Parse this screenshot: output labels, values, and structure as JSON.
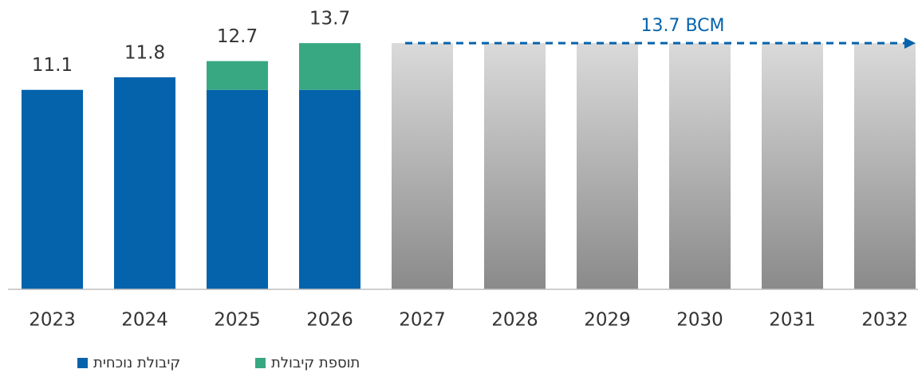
{
  "chart_data": {
    "type": "bar",
    "stacked": true,
    "categories": [
      "2023",
      "2024",
      "2025",
      "2026",
      "2027",
      "2028",
      "2029",
      "2030",
      "2031",
      "2032"
    ],
    "series": [
      {
        "name": "קיבולת נוכחית",
        "color": "#0563ac",
        "values": [
          11.1,
          11.8,
          11.1,
          11.1,
          null,
          null,
          null,
          null,
          null,
          null
        ]
      },
      {
        "name": "תוספת קיבולת",
        "color": "#38a882",
        "values": [
          null,
          null,
          1.6,
          2.6,
          null,
          null,
          null,
          null,
          null,
          null
        ]
      }
    ],
    "totals": [
      11.1,
      11.8,
      12.7,
      13.7,
      null,
      null,
      null,
      null,
      null,
      null
    ],
    "projection": {
      "values": [
        null,
        null,
        null,
        null,
        13.7,
        13.7,
        13.7,
        13.7,
        13.7,
        13.7
      ],
      "color_top": "#dadada",
      "color_bottom": "#8a8a8a"
    },
    "annotation": {
      "text": "13.7 BCM",
      "value": 13.7,
      "color": "#0563ac"
    },
    "ylim": [
      0,
      16.1
    ]
  }
}
